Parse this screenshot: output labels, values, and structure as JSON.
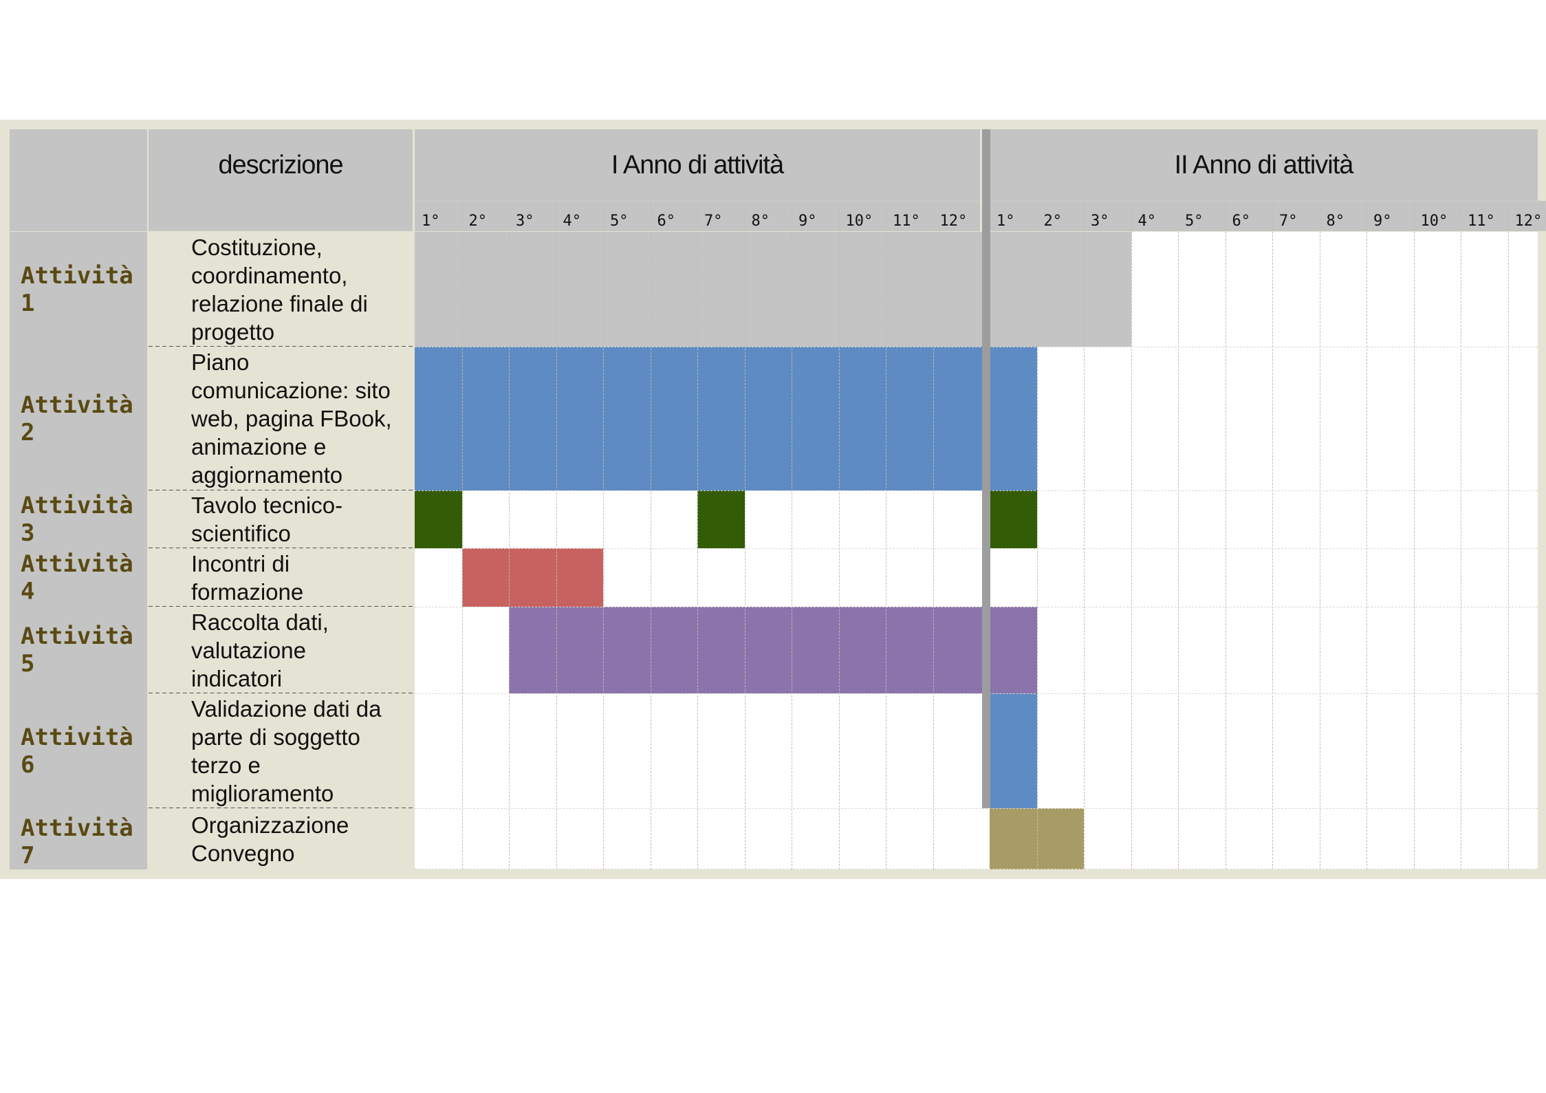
{
  "header": {
    "description_label": "descrizione",
    "year1_label": "I Anno di attività",
    "year2_label": "II Anno di attività"
  },
  "months": {
    "year1": [
      "1°",
      "2°",
      "3°",
      "4°",
      "5°",
      "6°",
      "7°",
      "8°",
      "9°",
      "10°",
      "11°",
      "12°"
    ],
    "year2": [
      "1°",
      "2°",
      "3°",
      "4°",
      "5°",
      "6°",
      "7°",
      "8°",
      "9°",
      "10°",
      "11°",
      "12°"
    ]
  },
  "colors": {
    "header_gray": "#c4c4c4",
    "frame_beige": "#e5e3d4",
    "activity_label": "#5a4a12",
    "year_divider": "#9d9d9d"
  },
  "chart_data": {
    "type": "gantt",
    "unit": "month",
    "periods": 24,
    "activities": [
      {
        "label": "Attività 1",
        "description": "Costituzione, coordinamento, relazione finale di progetto",
        "color": "#c4c4c4",
        "spans": [
          [
            1,
            15
          ]
        ]
      },
      {
        "label": "Attività 2",
        "description": "Piano comunicazione: sito web, pagina FBook, animazione e aggiornamento",
        "color": "#5f8bc4",
        "spans": [
          [
            1,
            13
          ]
        ]
      },
      {
        "label": "Attività 3",
        "description": "Tavolo tecnico-scientifico",
        "color": "#335c06",
        "spans": [
          [
            1,
            1
          ],
          [
            7,
            7
          ],
          [
            13,
            13
          ]
        ]
      },
      {
        "label": "Attività 4",
        "description": "Incontri di formazione",
        "color": "#c86260",
        "spans": [
          [
            2,
            4
          ]
        ]
      },
      {
        "label": "Attività 5",
        "description": "Raccolta dati, valutazione indicatori",
        "color": "#8b74ac",
        "spans": [
          [
            3,
            13
          ]
        ]
      },
      {
        "label": "Attività 6",
        "description": "Validazione dati da parte di soggetto terzo e miglioramento",
        "color": "#5f8bc4",
        "spans": [
          [
            13,
            13
          ]
        ]
      },
      {
        "label": "Attività 7",
        "description": "Organizzazione Convegno",
        "color": "#a89c66",
        "spans": [
          [
            13,
            14
          ]
        ]
      }
    ]
  }
}
